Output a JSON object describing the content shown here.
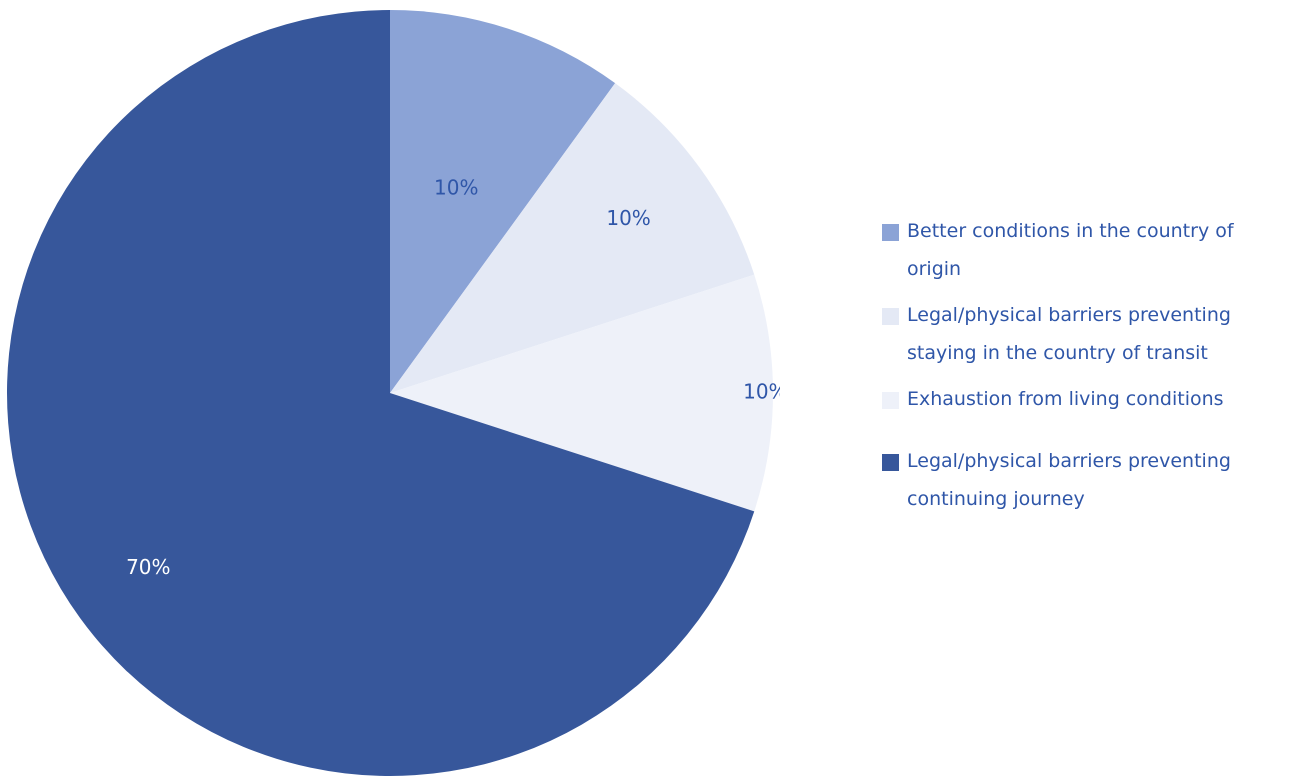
{
  "chart_data": {
    "type": "pie",
    "slices": [
      {
        "label": "Better conditions in the country of origin",
        "value": 10,
        "display": "10%",
        "color": "#8ba3d6",
        "label_color": "#2f56a8"
      },
      {
        "label": "Legal/physical barriers preventing staying in the country of transit",
        "value": 10,
        "display": "10%",
        "color": "#e4e9f5",
        "label_color": "#2f56a8"
      },
      {
        "label": "Exhaustion from living conditions",
        "value": 10,
        "display": "10%",
        "color": "#eef1f9",
        "label_color": "#2f56a8"
      },
      {
        "label": "Legal/physical barriers preventing continuing journey",
        "value": 70,
        "display": "70%",
        "color": "#37579b",
        "label_color": "#ffffff"
      }
    ],
    "legend_position": "right",
    "start_angle_deg": 0,
    "direction": "clockwise"
  }
}
